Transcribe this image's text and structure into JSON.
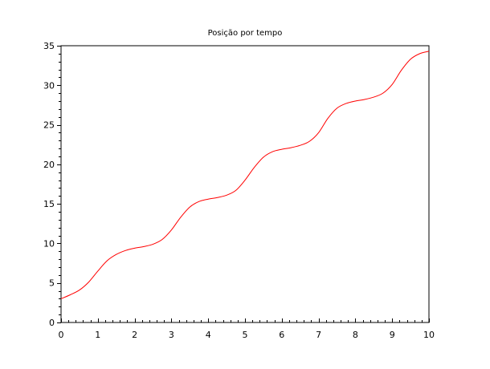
{
  "chart_data": {
    "type": "line",
    "title": "Posição por tempo",
    "xlabel": "",
    "ylabel": "",
    "xlim": [
      0,
      10
    ],
    "ylim": [
      0,
      35
    ],
    "x_ticks": [
      0,
      1,
      2,
      3,
      4,
      5,
      6,
      7,
      8,
      9,
      10
    ],
    "y_ticks": [
      0,
      5,
      10,
      15,
      20,
      25,
      30,
      35
    ],
    "grid": false,
    "legend": "none",
    "series": [
      {
        "color": "#ff0000",
        "x": [
          0,
          0.25,
          0.5,
          0.75,
          1,
          1.25,
          1.5,
          1.75,
          2,
          2.25,
          2.5,
          2.75,
          3,
          3.25,
          3.5,
          3.75,
          4,
          4.25,
          4.5,
          4.75,
          5,
          5.25,
          5.5,
          5.75,
          6,
          6.25,
          6.5,
          6.75,
          7,
          7.25,
          7.5,
          7.75,
          8,
          8.25,
          8.5,
          8.75,
          9,
          9.25,
          9.5,
          9.75,
          10
        ],
        "y": [
          3.0,
          3.5,
          4.1,
          5.1,
          6.5,
          7.8,
          8.6,
          9.1,
          9.4,
          9.6,
          9.9,
          10.5,
          11.7,
          13.3,
          14.6,
          15.3,
          15.6,
          15.8,
          16.1,
          16.7,
          18.0,
          19.6,
          20.9,
          21.6,
          21.9,
          22.1,
          22.4,
          22.9,
          24.0,
          25.8,
          27.1,
          27.7,
          28.0,
          28.2,
          28.5,
          29.0,
          30.1,
          31.9,
          33.3,
          34.0,
          34.3
        ]
      }
    ]
  }
}
